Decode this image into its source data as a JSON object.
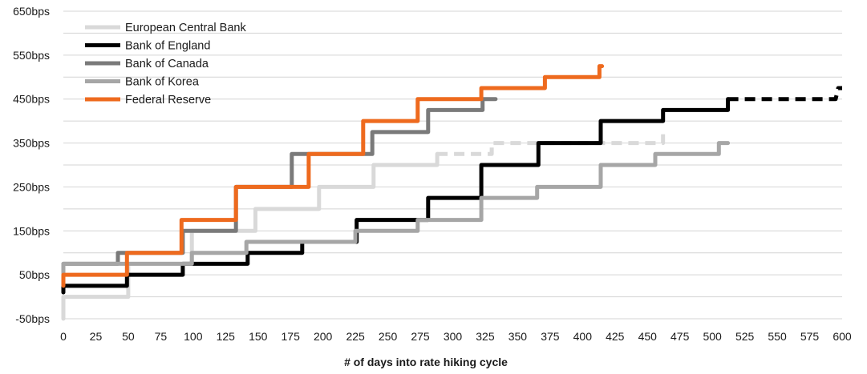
{
  "chart_data": {
    "type": "line",
    "title": "",
    "xlabel": "# of days into rate hiking cycle",
    "ylabel": "",
    "xlim": [
      0,
      600
    ],
    "ylim": [
      -50,
      650
    ],
    "x_ticks": [
      0,
      25,
      50,
      75,
      100,
      125,
      150,
      175,
      200,
      225,
      250,
      275,
      300,
      325,
      350,
      375,
      400,
      425,
      450,
      475,
      500,
      525,
      550,
      575,
      600
    ],
    "y_ticks": [
      -50,
      50,
      150,
      250,
      350,
      450,
      550,
      650
    ],
    "y_tick_labels": [
      "-50bps",
      "50bps",
      "150bps",
      "250bps",
      "350bps",
      "450bps",
      "550bps",
      "650bps"
    ],
    "grid": "horizontal",
    "legend_position": "top-left",
    "step": true,
    "series": [
      {
        "name": "European Central Bank",
        "color": "#d9d9d9",
        "points": [
          [
            0,
            -50
          ],
          [
            0,
            0
          ],
          [
            50,
            0
          ],
          [
            50,
            75
          ],
          [
            99,
            75
          ],
          [
            99,
            150
          ],
          [
            148,
            150
          ],
          [
            148,
            200
          ],
          [
            197,
            200
          ],
          [
            197,
            250
          ],
          [
            239,
            250
          ],
          [
            239,
            300
          ],
          [
            288,
            300
          ],
          [
            288,
            325
          ]
        ],
        "dashed_points": [
          [
            288,
            325
          ],
          [
            330,
            325
          ],
          [
            330,
            350
          ],
          [
            462,
            350
          ],
          [
            462,
            370
          ]
        ]
      },
      {
        "name": "Bank of England",
        "color": "#000000",
        "points": [
          [
            0,
            10
          ],
          [
            0,
            25
          ],
          [
            49,
            25
          ],
          [
            49,
            50
          ],
          [
            92,
            50
          ],
          [
            92,
            75
          ],
          [
            142,
            75
          ],
          [
            142,
            100
          ],
          [
            184,
            100
          ],
          [
            184,
            125
          ],
          [
            226,
            125
          ],
          [
            226,
            175
          ],
          [
            281,
            175
          ],
          [
            281,
            225
          ],
          [
            322,
            225
          ],
          [
            322,
            300
          ],
          [
            366,
            300
          ],
          [
            366,
            350
          ],
          [
            414,
            350
          ],
          [
            414,
            400
          ],
          [
            462,
            400
          ],
          [
            462,
            425
          ],
          [
            512,
            425
          ],
          [
            512,
            450
          ]
        ],
        "dashed_points": [
          [
            512,
            450
          ],
          [
            595,
            450
          ],
          [
            597,
            475
          ],
          [
            600,
            475
          ]
        ]
      },
      {
        "name": "Bank of Canada",
        "color": "#7a7a7a",
        "points": [
          [
            0,
            75
          ],
          [
            42,
            75
          ],
          [
            42,
            100
          ],
          [
            92,
            100
          ],
          [
            92,
            150
          ],
          [
            133,
            150
          ],
          [
            133,
            250
          ],
          [
            176,
            250
          ],
          [
            176,
            325
          ],
          [
            238,
            325
          ],
          [
            238,
            375
          ],
          [
            281,
            375
          ],
          [
            281,
            425
          ],
          [
            323,
            425
          ],
          [
            323,
            450
          ],
          [
            333,
            450
          ]
        ]
      },
      {
        "name": "Bank of Korea",
        "color": "#a6a6a6",
        "points": [
          [
            0,
            50
          ],
          [
            0,
            75
          ],
          [
            99,
            75
          ],
          [
            99,
            100
          ],
          [
            141,
            100
          ],
          [
            141,
            125
          ],
          [
            225,
            125
          ],
          [
            225,
            150
          ],
          [
            273,
            150
          ],
          [
            273,
            175
          ],
          [
            322,
            175
          ],
          [
            322,
            225
          ],
          [
            365,
            225
          ],
          [
            365,
            250
          ],
          [
            414,
            250
          ],
          [
            414,
            300
          ],
          [
            456,
            300
          ],
          [
            456,
            325
          ],
          [
            505,
            325
          ],
          [
            505,
            350
          ],
          [
            512,
            350
          ]
        ]
      },
      {
        "name": "Federal Reserve",
        "color": "#ee6a1e",
        "points": [
          [
            0,
            25
          ],
          [
            0,
            50
          ],
          [
            49,
            50
          ],
          [
            49,
            100
          ],
          [
            91,
            100
          ],
          [
            91,
            175
          ],
          [
            133,
            175
          ],
          [
            133,
            250
          ],
          [
            189,
            250
          ],
          [
            189,
            325
          ],
          [
            231,
            325
          ],
          [
            231,
            400
          ],
          [
            273,
            400
          ],
          [
            273,
            450
          ],
          [
            322,
            450
          ],
          [
            322,
            475
          ],
          [
            371,
            475
          ],
          [
            371,
            500
          ],
          [
            413,
            500
          ],
          [
            413,
            525
          ],
          [
            415,
            525
          ]
        ]
      }
    ]
  }
}
